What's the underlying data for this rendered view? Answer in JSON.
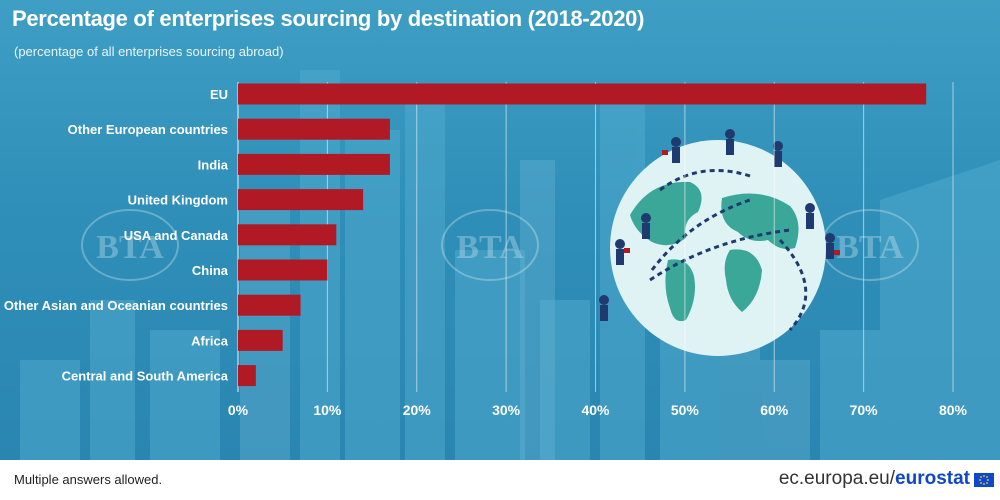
{
  "header": {
    "title": "Percentage of enterprises sourcing by destination (2018-2020)",
    "subtitle": "(percentage of all enterprises sourcing abroad)"
  },
  "footer": {
    "note": "Multiple answers allowed.",
    "source_prefix": "ec.europa.eu/",
    "source_brand": "eurostat",
    "flag_icon": "eu-flag-icon"
  },
  "watermarks": {
    "text": "BTA"
  },
  "colors": {
    "bar": "#b11a25",
    "background": "#2f8fb8",
    "text": "#ffffff",
    "brand_blue": "#0e47cb"
  },
  "chart_data": {
    "type": "bar",
    "orientation": "horizontal",
    "categories": [
      "EU",
      "Other European countries",
      "India",
      "United Kingdom",
      "USA and Canada",
      "China",
      "Other Asian and Oceanian countries",
      "Africa",
      "Central and South America"
    ],
    "values": [
      77,
      17,
      17,
      14,
      11,
      10,
      7,
      5,
      2
    ],
    "xlim": [
      0,
      80
    ],
    "xticks": [
      0,
      10,
      20,
      30,
      40,
      50,
      60,
      70,
      80
    ],
    "xtick_labels": [
      "0%",
      "10%",
      "20%",
      "30%",
      "40%",
      "50%",
      "60%",
      "70%",
      "80%"
    ],
    "grid": true,
    "legend": "none"
  }
}
